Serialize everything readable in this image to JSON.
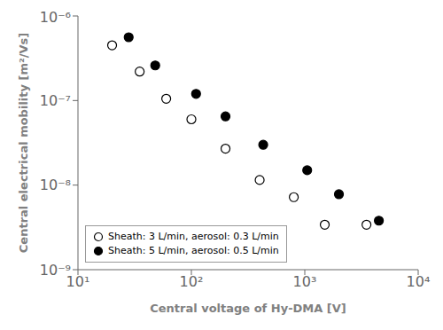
{
  "chart_data": {
    "type": "scatter",
    "xlabel": "Central voltage of Hy-DMA [V]",
    "ylabel": "Central electrical mobility [m²/Vs]",
    "log": true,
    "xlim": [
      10,
      10000
    ],
    "ylim": [
      1e-09,
      1e-06
    ],
    "xticks": [
      {
        "value": 10,
        "label": "10¹"
      },
      {
        "value": 100,
        "label": "10²"
      },
      {
        "value": 1000,
        "label": "10³"
      },
      {
        "value": 10000,
        "label": "10⁴"
      }
    ],
    "yticks": [
      {
        "value": 1e-09,
        "label": "10⁻⁹"
      },
      {
        "value": 1e-08,
        "label": "10⁻⁸"
      },
      {
        "value": 1e-07,
        "label": "10⁻⁷"
      },
      {
        "value": 1e-06,
        "label": "10⁻⁶"
      }
    ],
    "grid": false,
    "legend": "lower left",
    "series": [
      {
        "name": "Sheath: 3 L/min, aerosol: 0.3 L/min",
        "color": "black",
        "marker": "open",
        "x": [
          20,
          35,
          60,
          100,
          200,
          400,
          800,
          1500,
          3500
        ],
        "values": [
          4.5e-07,
          2.2e-07,
          1.05e-07,
          6e-08,
          2.7e-08,
          1.15e-08,
          7.2e-09,
          3.4e-09,
          3.4e-09
        ]
      },
      {
        "name": "Sheath: 5 L/min, aerosol: 0.5 L/min",
        "color": "black",
        "marker": "filled",
        "x": [
          28,
          48,
          110,
          200,
          430,
          1050,
          2000,
          4500
        ],
        "values": [
          5.6e-07,
          2.6e-07,
          1.2e-07,
          6.5e-08,
          3e-08,
          1.5e-08,
          7.8e-09,
          3.8e-09
        ]
      }
    ]
  }
}
